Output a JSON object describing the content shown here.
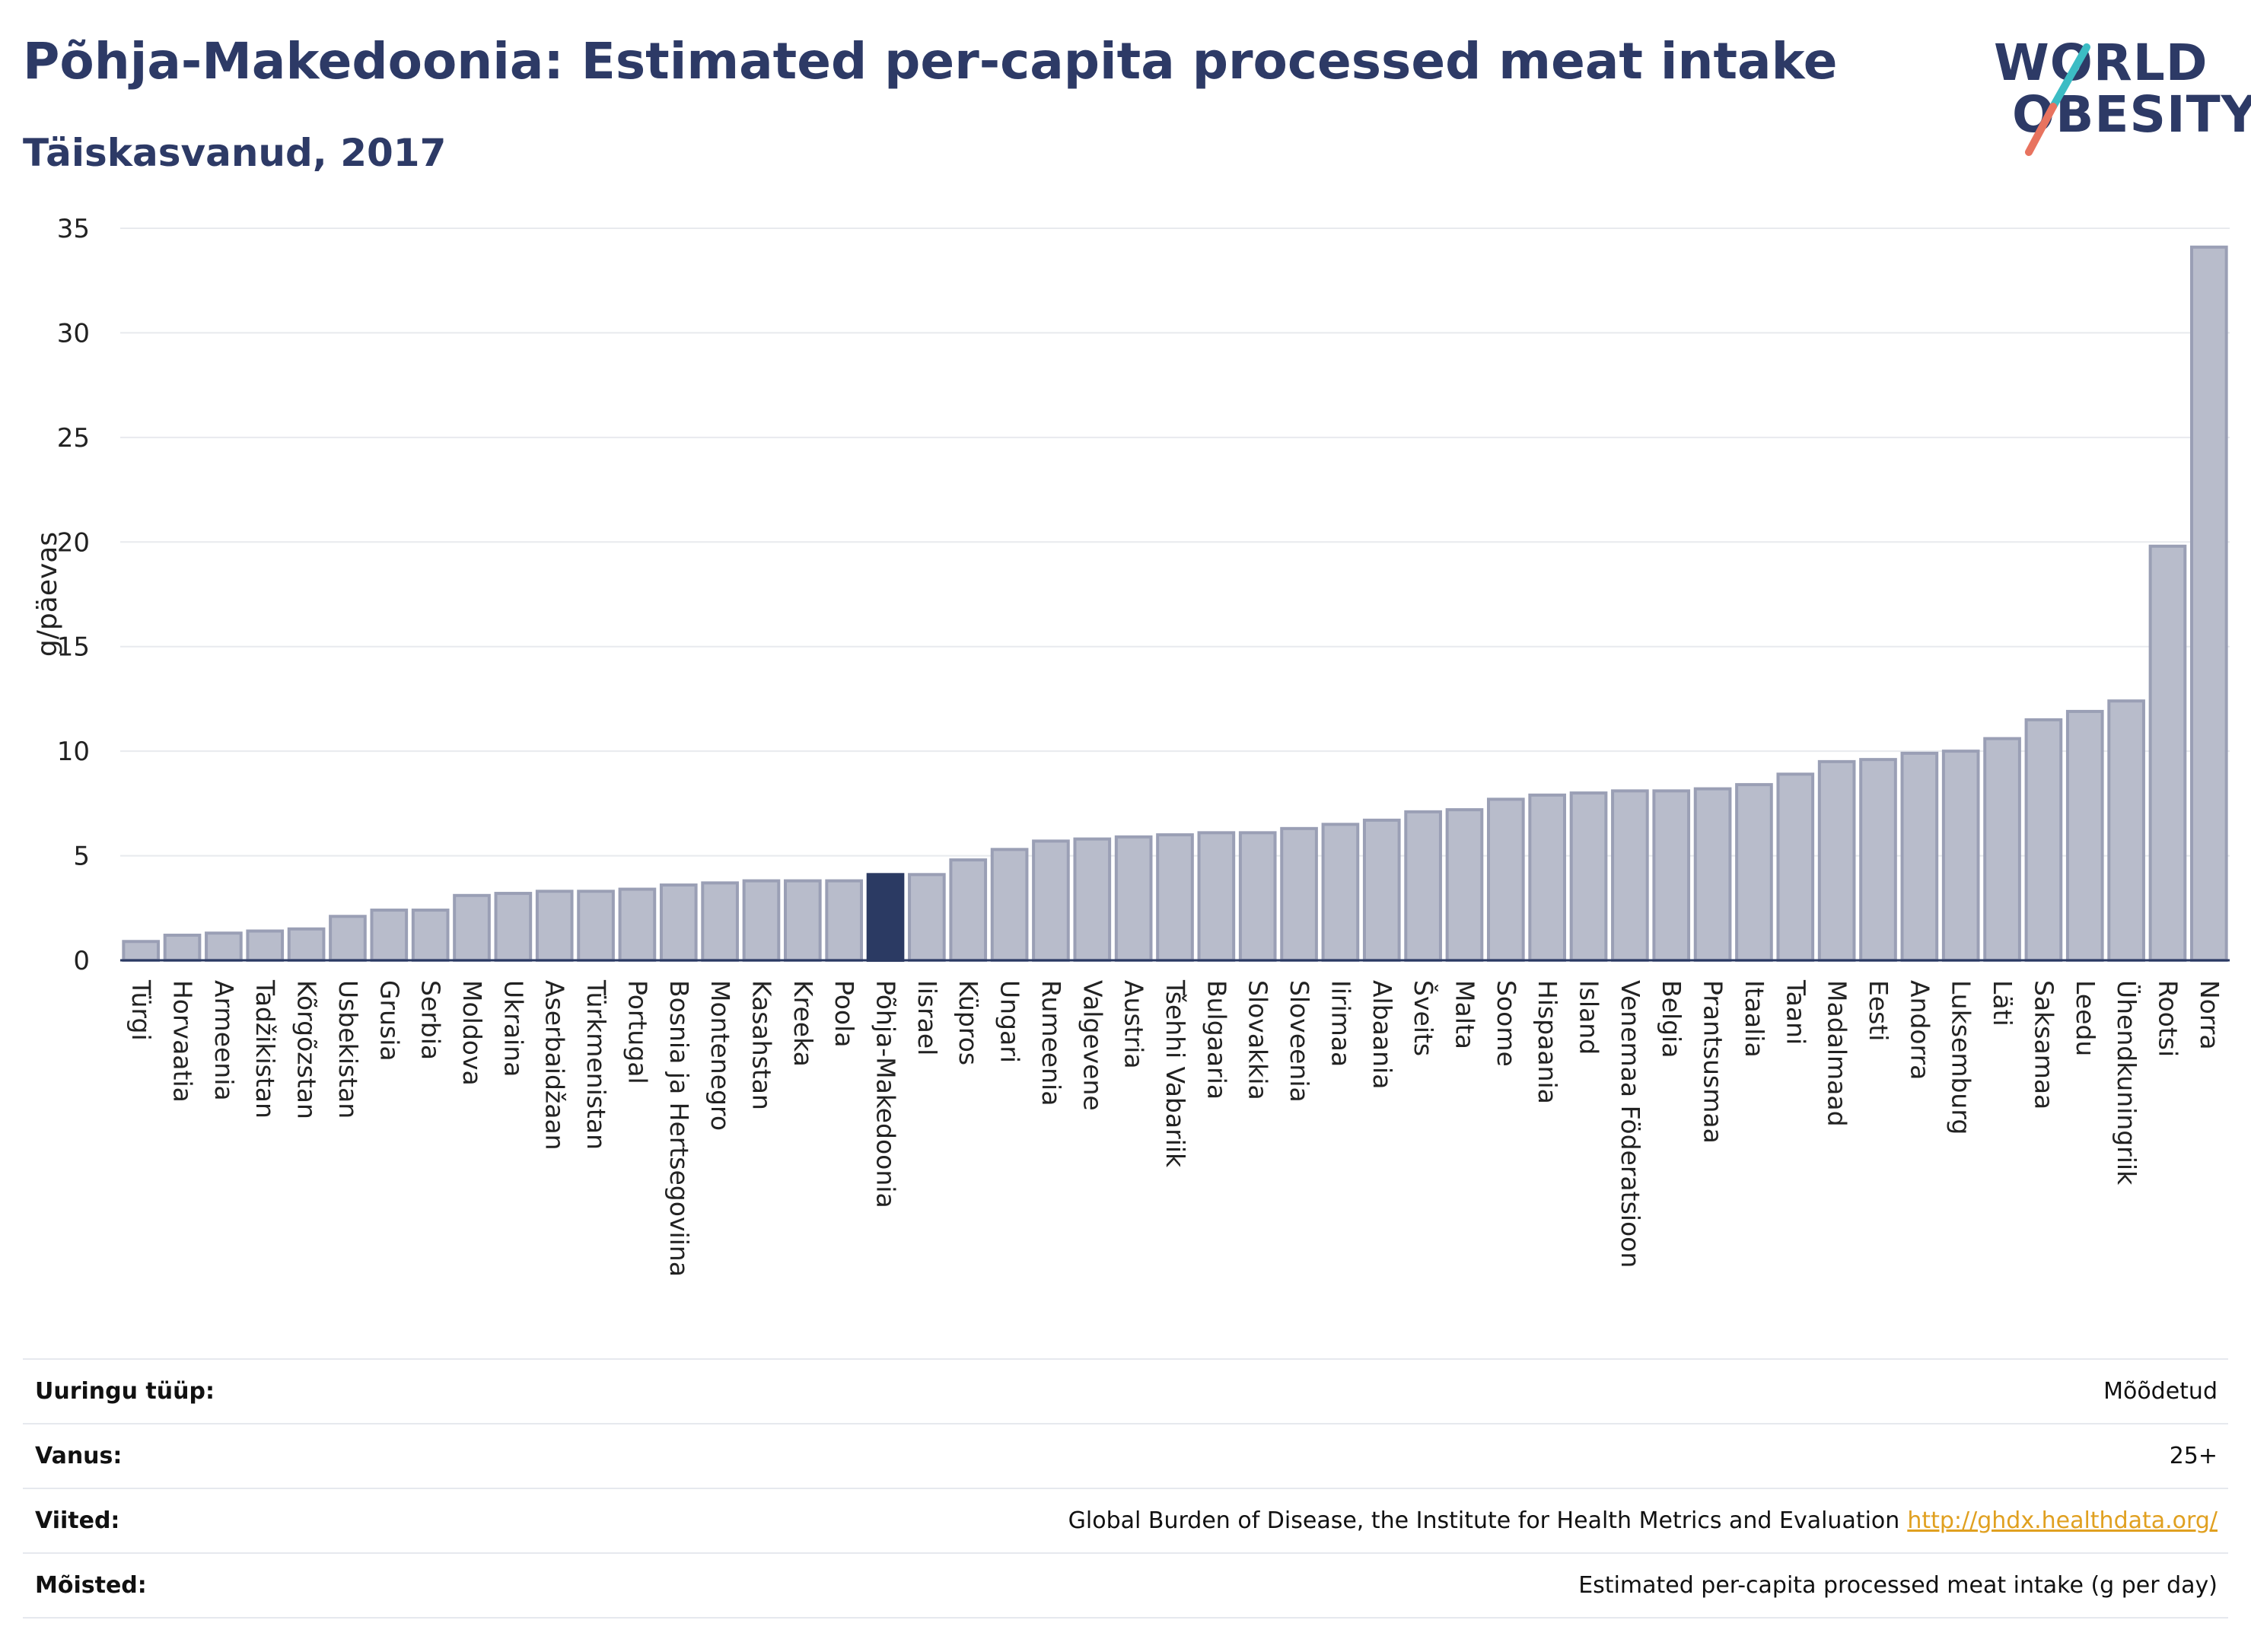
{
  "header": {
    "title": "Põhja-Makedoonia: Estimated per-capita processed meat intake",
    "subtitle": "Täiskasvanud, 2017"
  },
  "logo": {
    "line1": "WORLD",
    "line2": "OBESITY",
    "icon": "world-obesity-logo"
  },
  "chart_data": {
    "type": "bar",
    "ylabel": "g/päevas",
    "ylim": [
      0,
      35
    ],
    "yticks": [
      0,
      5,
      10,
      15,
      20,
      25,
      30,
      35
    ],
    "grid": true,
    "highlight": "Põhja-Makedoonia",
    "colors": {
      "bar": "#b8bccb",
      "bar_border": "#9a9fb5",
      "highlight": "#2b3a63",
      "grid": "#e8eaee"
    },
    "categories": [
      "Türgi",
      "Horvaatia",
      "Armeenia",
      "Tadžikistan",
      "Kõrgõzstan",
      "Usbekistan",
      "Grusia",
      "Serbia",
      "Moldova",
      "Ukraina",
      "Aserbaidžaan",
      "Türkmenistan",
      "Portugal",
      "Bosnia ja Hertsegoviina",
      "Montenegro",
      "Kasahstan",
      "Kreeka",
      "Poola",
      "Põhja-Makedoonia",
      "Iisrael",
      "Küpros",
      "Ungari",
      "Rumeenia",
      "Valgevene",
      "Austria",
      "Tšehhi Vabariik",
      "Bulgaaria",
      "Slovakkia",
      "Sloveenia",
      "Iirimaa",
      "Albaania",
      "Šveits",
      "Malta",
      "Soome",
      "Hispaania",
      "Island",
      "Venemaa Föderatsioon",
      "Belgia",
      "Prantsusmaa",
      "Itaalia",
      "Taani",
      "Madalmaad",
      "Eesti",
      "Andorra",
      "Luksemburg",
      "Läti",
      "Saksamaa",
      "Leedu",
      "Ühendkuningriik",
      "Rootsi",
      "Norra"
    ],
    "values": [
      0.9,
      1.2,
      1.3,
      1.4,
      1.5,
      2.1,
      2.4,
      2.4,
      3.1,
      3.2,
      3.3,
      3.3,
      3.4,
      3.6,
      3.7,
      3.8,
      3.8,
      3.8,
      4.1,
      4.1,
      4.8,
      5.3,
      5.7,
      5.8,
      5.9,
      6.0,
      6.1,
      6.1,
      6.3,
      6.5,
      6.7,
      7.1,
      7.2,
      7.7,
      7.9,
      8.0,
      8.1,
      8.1,
      8.2,
      8.4,
      8.9,
      9.5,
      9.6,
      9.9,
      10.0,
      10.6,
      11.5,
      11.9,
      12.4,
      19.8,
      34.1
    ]
  },
  "info": {
    "survey_type": {
      "label": "Uuringu tüüp:",
      "value": "Mõõdetud"
    },
    "age": {
      "label": "Vanus:",
      "value": "25+"
    },
    "references": {
      "label": "Viited:",
      "value": "Global Burden of Disease, the Institute for Health Metrics and Evaluation",
      "link": "http://ghdx.healthdata.org/"
    },
    "definitions": {
      "label": "Mõisted:",
      "value": "Estimated per-capita processed meat intake (g per day)"
    }
  }
}
